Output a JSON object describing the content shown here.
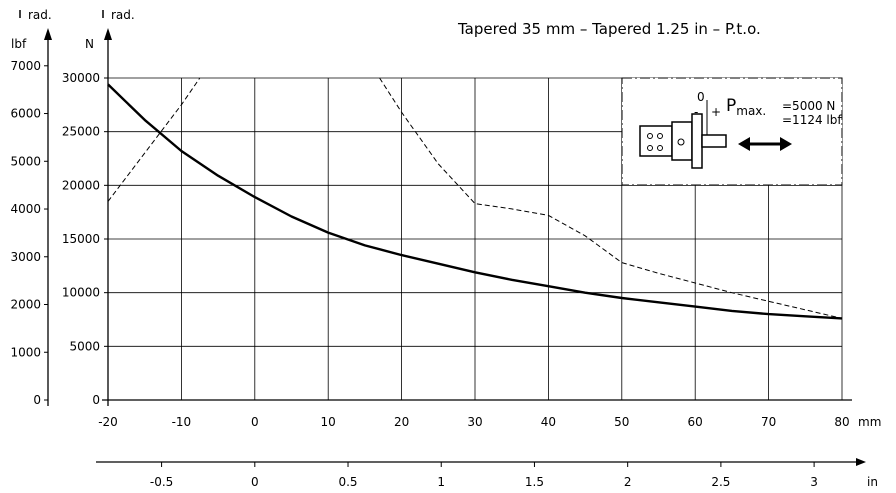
{
  "chart_data": {
    "type": "line",
    "title": "Tapered 35 mm – Tapered 1.25 in – P.t.o.",
    "x_mm": {
      "unit": "mm",
      "ticks": [
        -20,
        -10,
        0,
        10,
        20,
        30,
        40,
        50,
        60,
        70,
        80
      ],
      "range": [
        -20,
        80
      ]
    },
    "x_in": {
      "unit": "in",
      "ticks": [
        -0.5,
        0,
        0.5,
        1,
        1.5,
        2,
        2.5,
        3
      ],
      "labels": [
        "-0.5",
        "0",
        "0.5",
        "1",
        "1.5",
        "2",
        "2.5",
        "3"
      ]
    },
    "y_N": {
      "unit": "N",
      "ticks": [
        0,
        5000,
        10000,
        15000,
        20000,
        25000,
        30000
      ],
      "range": [
        0,
        30000
      ]
    },
    "y_lbf": {
      "unit": "lbf",
      "ticks": [
        0,
        1000,
        2000,
        3000,
        4000,
        5000,
        6000,
        7000
      ]
    },
    "axis_markers": {
      "lbf_rad": "rad.",
      "n_rad": "rad."
    },
    "series": [
      {
        "style": "solid",
        "x": [
          -20,
          -15,
          -10,
          -5,
          0,
          5,
          10,
          15,
          20,
          25,
          30,
          35,
          40,
          45,
          50,
          55,
          60,
          65,
          70,
          75,
          80
        ],
        "y": [
          29400,
          26100,
          23200,
          20900,
          18900,
          17100,
          15600,
          14400,
          13500,
          12700,
          11900,
          11200,
          10600,
          10000,
          9500,
          9100,
          8700,
          8300,
          8000,
          7800,
          7600
        ]
      },
      {
        "style": "dashed",
        "x": [
          -20,
          -15,
          -10,
          -7.5
        ],
        "y": [
          18500,
          23000,
          27500,
          30000
        ]
      },
      {
        "style": "dashed",
        "x": [
          17,
          20,
          25,
          30,
          35,
          40,
          45,
          50,
          55,
          60,
          65,
          70,
          75,
          80
        ],
        "y": [
          30000,
          26800,
          22000,
          18300,
          17800,
          17200,
          15300,
          12800,
          11800,
          10900,
          10000,
          9200,
          8400,
          7600
        ]
      }
    ],
    "inset": {
      "p_label": "P",
      "p_sub": "max.",
      "value_n": "=5000 N",
      "value_lbf": "=1124 lbf",
      "zero": "0",
      "minus": "-",
      "plus": "+"
    }
  }
}
